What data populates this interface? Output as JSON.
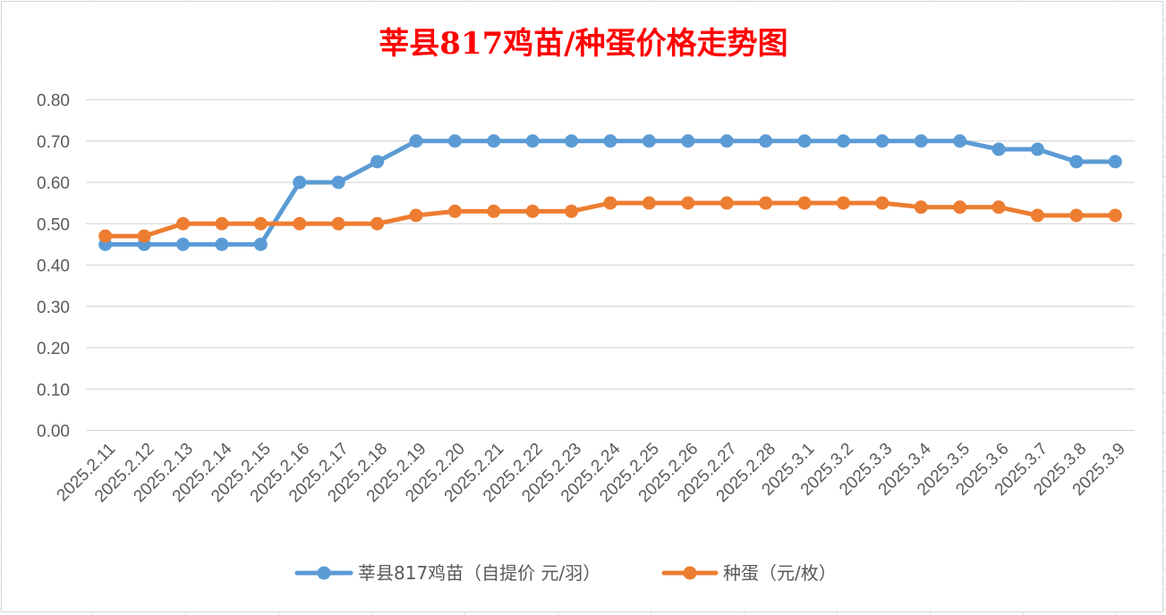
{
  "chart_data": {
    "type": "line",
    "title": "莘县817鸡苗/种蛋价格走势图",
    "xlabel": "",
    "ylabel": "",
    "categories": [
      "2025.2.11",
      "2025.2.12",
      "2025.2.13",
      "2025.2.14",
      "2025.2.15",
      "2025.2.16",
      "2025.2.17",
      "2025.2.18",
      "2025.2.19",
      "2025.2.20",
      "2025.2.21",
      "2025.2.22",
      "2025.2.23",
      "2025.2.24",
      "2025.2.25",
      "2025.2.26",
      "2025.2.27",
      "2025.2.28",
      "2025.3.1",
      "2025.3.2",
      "2025.3.3",
      "2025.3.4",
      "2025.3.5",
      "2025.3.6",
      "2025.3.7",
      "2025.3.8",
      "2025.3.9"
    ],
    "ylim": [
      0,
      0.8
    ],
    "yticks": [
      "0.00",
      "0.10",
      "0.20",
      "0.30",
      "0.40",
      "0.50",
      "0.60",
      "0.70",
      "0.80"
    ],
    "grid": true,
    "legend_position": "bottom",
    "series": [
      {
        "name": "莘县817鸡苗（自提价 元/羽）",
        "color": "#5b9bd5",
        "values": [
          0.45,
          0.45,
          0.45,
          0.45,
          0.45,
          0.6,
          0.6,
          0.65,
          0.7,
          0.7,
          0.7,
          0.7,
          0.7,
          0.7,
          0.7,
          0.7,
          0.7,
          0.7,
          0.7,
          0.7,
          0.7,
          0.7,
          0.7,
          0.68,
          0.68,
          0.65,
          0.65
        ]
      },
      {
        "name": "种蛋（元/枚）",
        "color": "#ed7d31",
        "values": [
          0.47,
          0.47,
          0.5,
          0.5,
          0.5,
          0.5,
          0.5,
          0.5,
          0.52,
          0.53,
          0.53,
          0.53,
          0.53,
          0.55,
          0.55,
          0.55,
          0.55,
          0.55,
          0.55,
          0.55,
          0.55,
          0.54,
          0.54,
          0.54,
          0.52,
          0.52,
          0.52
        ]
      }
    ]
  }
}
